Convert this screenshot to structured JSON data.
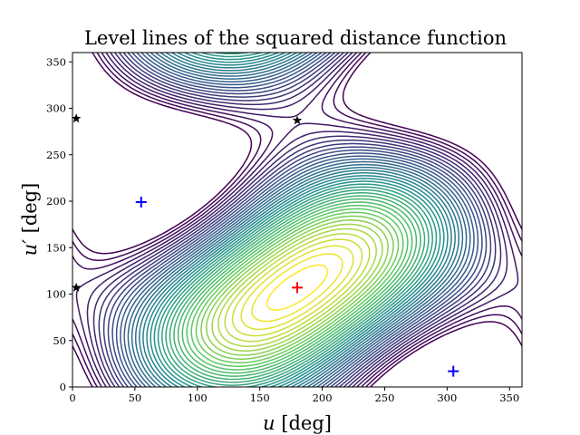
{
  "chart_data": {
    "type": "contour",
    "title": "Level lines of the squared distance function",
    "xlabel_var": "u",
    "xlabel_unit": " [deg]",
    "ylabel_var": "u′",
    "ylabel_unit": " [deg]",
    "xlim": [
      0,
      360
    ],
    "ylim": [
      0,
      360
    ],
    "xticks": [
      0,
      50,
      100,
      150,
      200,
      250,
      300,
      350
    ],
    "yticks": [
      0,
      50,
      100,
      150,
      200,
      250,
      300,
      350
    ],
    "colormap": [
      "#440154",
      "#3b528b",
      "#21908d",
      "#5dc962",
      "#fde725"
    ],
    "levels": 40,
    "grid": false,
    "markers": [
      {
        "symbol": "plus",
        "color": "#ff0000",
        "x": 180,
        "y": 107
      },
      {
        "symbol": "plus",
        "color": "#0000ff",
        "x": 55,
        "y": 199
      },
      {
        "symbol": "plus",
        "color": "#0000ff",
        "x": 305,
        "y": 17
      },
      {
        "symbol": "star",
        "color": "#000000",
        "x": 180,
        "y": 287
      },
      {
        "symbol": "star",
        "color": "#000000",
        "x": 3,
        "y": 289
      },
      {
        "symbol": "star",
        "color": "#000000",
        "x": 3,
        "y": 107
      }
    ]
  }
}
